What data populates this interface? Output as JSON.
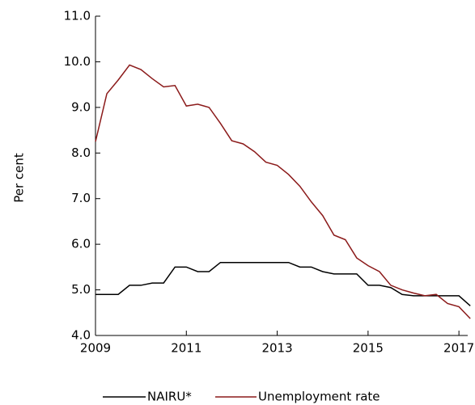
{
  "chart_data": {
    "type": "line",
    "y_label": "Per cent",
    "x": [
      2009,
      2009.25,
      2009.5,
      2009.75,
      2010,
      2010.25,
      2010.5,
      2010.75,
      2011,
      2011.25,
      2011.5,
      2011.75,
      2012,
      2012.25,
      2012.5,
      2012.75,
      2013,
      2013.25,
      2013.5,
      2013.75,
      2014,
      2014.25,
      2014.5,
      2014.75,
      2015,
      2015.25,
      2015.5,
      2015.75,
      2016,
      2016.25,
      2016.5,
      2016.75,
      2017,
      2017.25
    ],
    "series": [
      {
        "name": "NAIRU*",
        "color": "#000000",
        "values": [
          4.9,
          4.9,
          4.9,
          5.1,
          5.1,
          5.15,
          5.15,
          5.5,
          5.5,
          5.4,
          5.4,
          5.6,
          5.6,
          5.6,
          5.6,
          5.6,
          5.6,
          5.6,
          5.5,
          5.5,
          5.4,
          5.35,
          5.35,
          5.35,
          5.1,
          5.1,
          5.05,
          4.9,
          4.87,
          4.87,
          4.87,
          4.87,
          4.87,
          4.65
        ]
      },
      {
        "name": "Unemployment rate",
        "color": "#8b1a1a",
        "values": [
          8.25,
          9.3,
          9.6,
          9.93,
          9.83,
          9.63,
          9.45,
          9.48,
          9.03,
          9.07,
          9.0,
          8.65,
          8.27,
          8.2,
          8.03,
          7.8,
          7.73,
          7.53,
          7.27,
          6.93,
          6.63,
          6.2,
          6.1,
          5.7,
          5.53,
          5.4,
          5.1,
          5.0,
          4.93,
          4.87,
          4.9,
          4.7,
          4.63,
          4.37
        ]
      }
    ],
    "xlim": [
      2009,
      2017.4
    ],
    "xticks": [
      2009,
      2011,
      2013,
      2015,
      2017
    ],
    "ylim": [
      4,
      11
    ],
    "yticks": [
      {
        "value": 4,
        "label": "4.0"
      },
      {
        "value": 5,
        "label": "5.0"
      },
      {
        "value": 6,
        "label": "6.0"
      },
      {
        "value": 7,
        "label": "7.0"
      },
      {
        "value": 8,
        "label": "8.0"
      },
      {
        "value": 9,
        "label": "9.0"
      },
      {
        "value": 10,
        "label": "10.0"
      },
      {
        "value": 11,
        "label": "11.0"
      }
    ],
    "legend": "bottom"
  }
}
